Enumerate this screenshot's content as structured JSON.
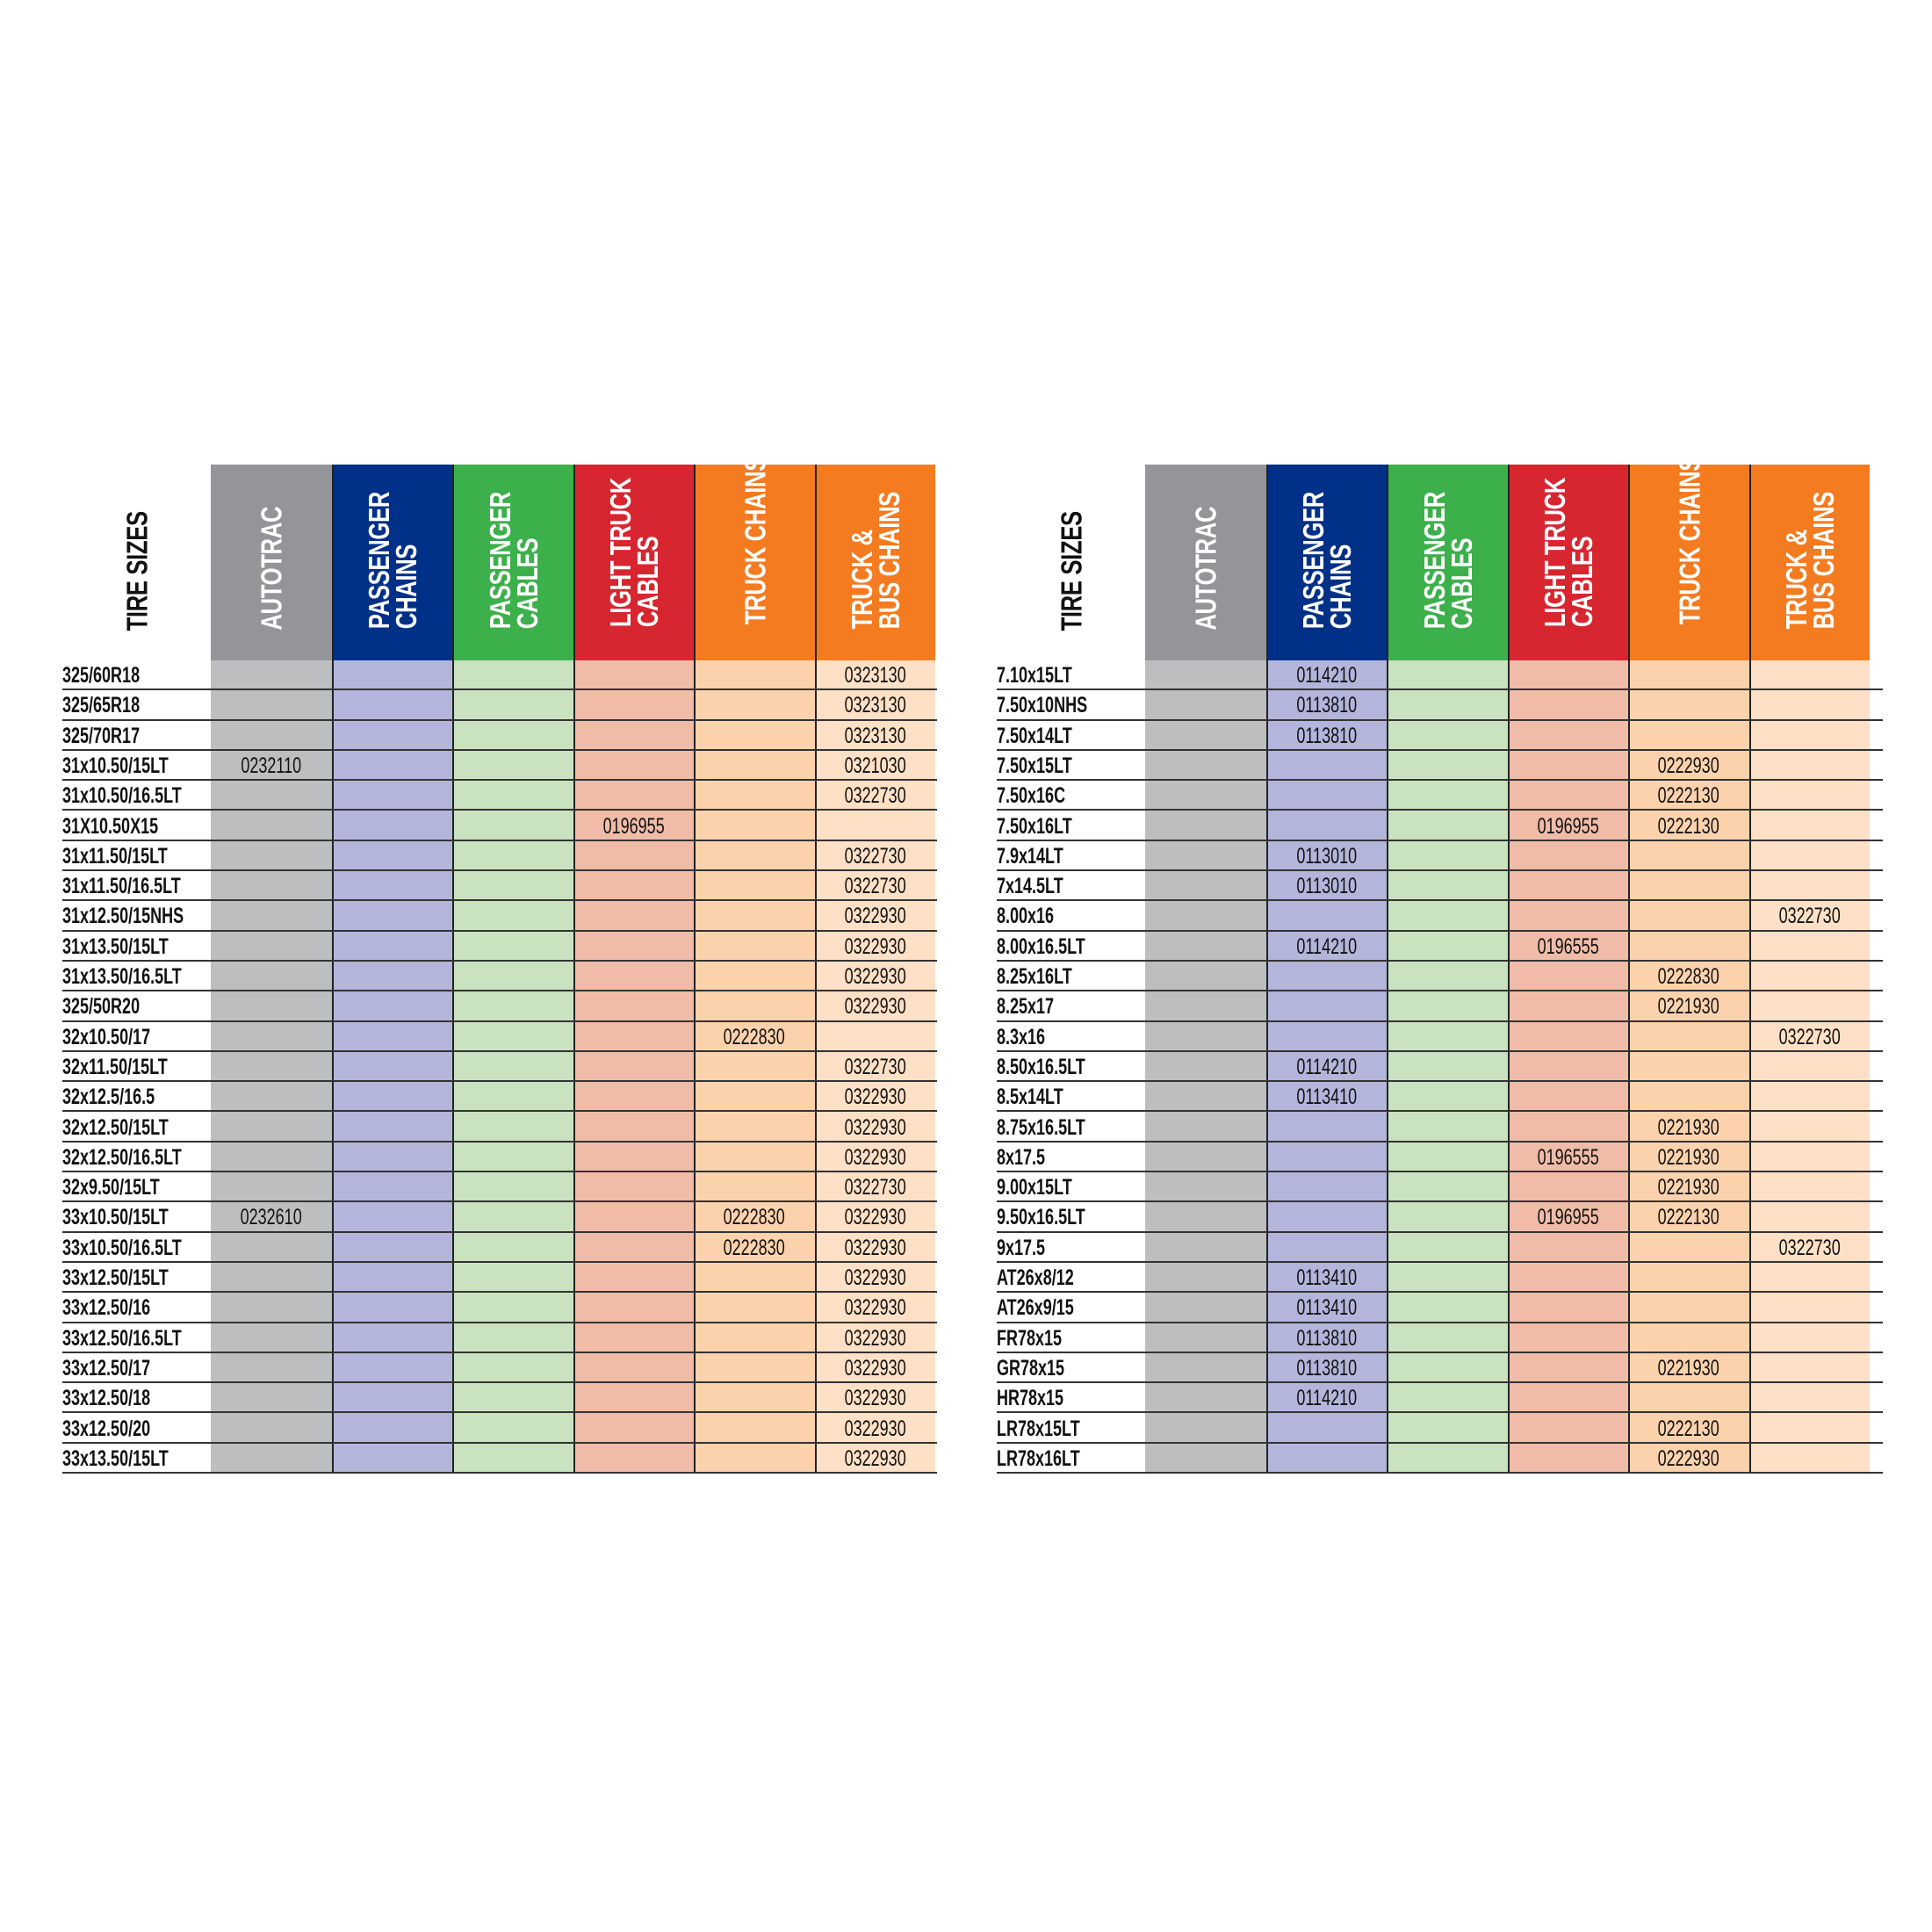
{
  "colors": {
    "header": [
      "#939598",
      "#003087",
      "#3cb04a",
      "#d7262f",
      "#f47b20",
      "#f47b20"
    ],
    "body": [
      "#bcbec0",
      "#b3b5db",
      "#c9e2bf",
      "#f0bca8",
      "#fcd2ad",
      "#fde0c5"
    ]
  },
  "tables": [
    {
      "label_header": "TIRE SIZES",
      "columns": [
        "AUTOTRAC",
        "PASSENGER\nCHAINS",
        "PASSENGER\nCABLES",
        "LIGHT TRUCK\nCABLES",
        "TRUCK CHAINS",
        "TRUCK &\nBUS CHAINS"
      ],
      "rows": [
        {
          "size": "325/60R18",
          "values": [
            "",
            "",
            "",
            "",
            "",
            "0323130"
          ]
        },
        {
          "size": "325/65R18",
          "values": [
            "",
            "",
            "",
            "",
            "",
            "0323130"
          ]
        },
        {
          "size": "325/70R17",
          "values": [
            "",
            "",
            "",
            "",
            "",
            "0323130"
          ]
        },
        {
          "size": "31x10.50/15LT",
          "values": [
            "0232110",
            "",
            "",
            "",
            "",
            "0321030"
          ]
        },
        {
          "size": "31x10.50/16.5LT",
          "values": [
            "",
            "",
            "",
            "",
            "",
            "0322730"
          ]
        },
        {
          "size": "31X10.50X15",
          "values": [
            "",
            "",
            "",
            "0196955",
            "",
            ""
          ]
        },
        {
          "size": "31x11.50/15LT",
          "values": [
            "",
            "",
            "",
            "",
            "",
            "0322730"
          ]
        },
        {
          "size": "31x11.50/16.5LT",
          "values": [
            "",
            "",
            "",
            "",
            "",
            "0322730"
          ]
        },
        {
          "size": "31x12.50/15NHS",
          "values": [
            "",
            "",
            "",
            "",
            "",
            "0322930"
          ]
        },
        {
          "size": "31x13.50/15LT",
          "values": [
            "",
            "",
            "",
            "",
            "",
            "0322930"
          ]
        },
        {
          "size": "31x13.50/16.5LT",
          "values": [
            "",
            "",
            "",
            "",
            "",
            "0322930"
          ]
        },
        {
          "size": "325/50R20",
          "values": [
            "",
            "",
            "",
            "",
            "",
            "0322930"
          ]
        },
        {
          "size": "32x10.50/17",
          "values": [
            "",
            "",
            "",
            "",
            "0222830",
            ""
          ]
        },
        {
          "size": "32x11.50/15LT",
          "values": [
            "",
            "",
            "",
            "",
            "",
            "0322730"
          ]
        },
        {
          "size": "32x12.5/16.5",
          "values": [
            "",
            "",
            "",
            "",
            "",
            "0322930"
          ]
        },
        {
          "size": "32x12.50/15LT",
          "values": [
            "",
            "",
            "",
            "",
            "",
            "0322930"
          ]
        },
        {
          "size": "32x12.50/16.5LT",
          "values": [
            "",
            "",
            "",
            "",
            "",
            "0322930"
          ]
        },
        {
          "size": "32x9.50/15LT",
          "values": [
            "",
            "",
            "",
            "",
            "",
            "0322730"
          ]
        },
        {
          "size": "33x10.50/15LT",
          "values": [
            "0232610",
            "",
            "",
            "",
            "0222830",
            "0322930"
          ]
        },
        {
          "size": "33x10.50/16.5LT",
          "values": [
            "",
            "",
            "",
            "",
            "0222830",
            "0322930"
          ]
        },
        {
          "size": "33x12.50/15LT",
          "values": [
            "",
            "",
            "",
            "",
            "",
            "0322930"
          ]
        },
        {
          "size": "33x12.50/16",
          "values": [
            "",
            "",
            "",
            "",
            "",
            "0322930"
          ]
        },
        {
          "size": "33x12.50/16.5LT",
          "values": [
            "",
            "",
            "",
            "",
            "",
            "0322930"
          ]
        },
        {
          "size": "33x12.50/17",
          "values": [
            "",
            "",
            "",
            "",
            "",
            "0322930"
          ]
        },
        {
          "size": "33x12.50/18",
          "values": [
            "",
            "",
            "",
            "",
            "",
            "0322930"
          ]
        },
        {
          "size": "33x12.50/20",
          "values": [
            "",
            "",
            "",
            "",
            "",
            "0322930"
          ]
        },
        {
          "size": "33x13.50/15LT",
          "values": [
            "",
            "",
            "",
            "",
            "",
            "0322930"
          ]
        }
      ]
    },
    {
      "label_header": "TIRE SIZES",
      "columns": [
        "AUTOTRAC",
        "PASSENGER\nCHAINS",
        "PASSENGER\nCABLES",
        "LIGHT TRUCK\nCABLES",
        "TRUCK CHAINS",
        "TRUCK &\nBUS CHAINS"
      ],
      "rows": [
        {
          "size": "7.10x15LT",
          "values": [
            "",
            "0114210",
            "",
            "",
            "",
            ""
          ]
        },
        {
          "size": "7.50x10NHS",
          "values": [
            "",
            "0113810",
            "",
            "",
            "",
            ""
          ]
        },
        {
          "size": "7.50x14LT",
          "values": [
            "",
            "0113810",
            "",
            "",
            "",
            ""
          ]
        },
        {
          "size": "7.50x15LT",
          "values": [
            "",
            "",
            "",
            "",
            "0222930",
            ""
          ]
        },
        {
          "size": "7.50x16C",
          "values": [
            "",
            "",
            "",
            "",
            "0222130",
            ""
          ]
        },
        {
          "size": "7.50x16LT",
          "values": [
            "",
            "",
            "",
            "0196955",
            "0222130",
            ""
          ]
        },
        {
          "size": "7.9x14LT",
          "values": [
            "",
            "0113010",
            "",
            "",
            "",
            ""
          ]
        },
        {
          "size": "7x14.5LT",
          "values": [
            "",
            "0113010",
            "",
            "",
            "",
            ""
          ]
        },
        {
          "size": "8.00x16",
          "values": [
            "",
            "",
            "",
            "",
            "",
            "0322730"
          ]
        },
        {
          "size": "8.00x16.5LT",
          "values": [
            "",
            "0114210",
            "",
            "0196555",
            "",
            ""
          ]
        },
        {
          "size": "8.25x16LT",
          "values": [
            "",
            "",
            "",
            "",
            "0222830",
            ""
          ]
        },
        {
          "size": "8.25x17",
          "values": [
            "",
            "",
            "",
            "",
            "0221930",
            ""
          ]
        },
        {
          "size": "8.3x16",
          "values": [
            "",
            "",
            "",
            "",
            "",
            "0322730"
          ]
        },
        {
          "size": "8.50x16.5LT",
          "values": [
            "",
            "0114210",
            "",
            "",
            "",
            ""
          ]
        },
        {
          "size": "8.5x14LT",
          "values": [
            "",
            "0113410",
            "",
            "",
            "",
            ""
          ]
        },
        {
          "size": "8.75x16.5LT",
          "values": [
            "",
            "",
            "",
            "",
            "0221930",
            ""
          ]
        },
        {
          "size": "8x17.5",
          "values": [
            "",
            "",
            "",
            "0196555",
            "0221930",
            ""
          ]
        },
        {
          "size": "9.00x15LT",
          "values": [
            "",
            "",
            "",
            "",
            "0221930",
            ""
          ]
        },
        {
          "size": "9.50x16.5LT",
          "values": [
            "",
            "",
            "",
            "0196955",
            "0222130",
            ""
          ]
        },
        {
          "size": "9x17.5",
          "values": [
            "",
            "",
            "",
            "",
            "",
            "0322730"
          ]
        },
        {
          "size": "AT26x8/12",
          "values": [
            "",
            "0113410",
            "",
            "",
            "",
            ""
          ]
        },
        {
          "size": "AT26x9/15",
          "values": [
            "",
            "0113410",
            "",
            "",
            "",
            ""
          ]
        },
        {
          "size": "FR78x15",
          "values": [
            "",
            "0113810",
            "",
            "",
            "",
            ""
          ]
        },
        {
          "size": "GR78x15",
          "values": [
            "",
            "0113810",
            "",
            "",
            "0221930",
            ""
          ]
        },
        {
          "size": "HR78x15",
          "values": [
            "",
            "0114210",
            "",
            "",
            "",
            ""
          ]
        },
        {
          "size": "LR78x15LT",
          "values": [
            "",
            "",
            "",
            "",
            "0222130",
            ""
          ]
        },
        {
          "size": "LR78x16LT",
          "values": [
            "",
            "",
            "",
            "",
            "0222930",
            ""
          ]
        }
      ]
    }
  ]
}
